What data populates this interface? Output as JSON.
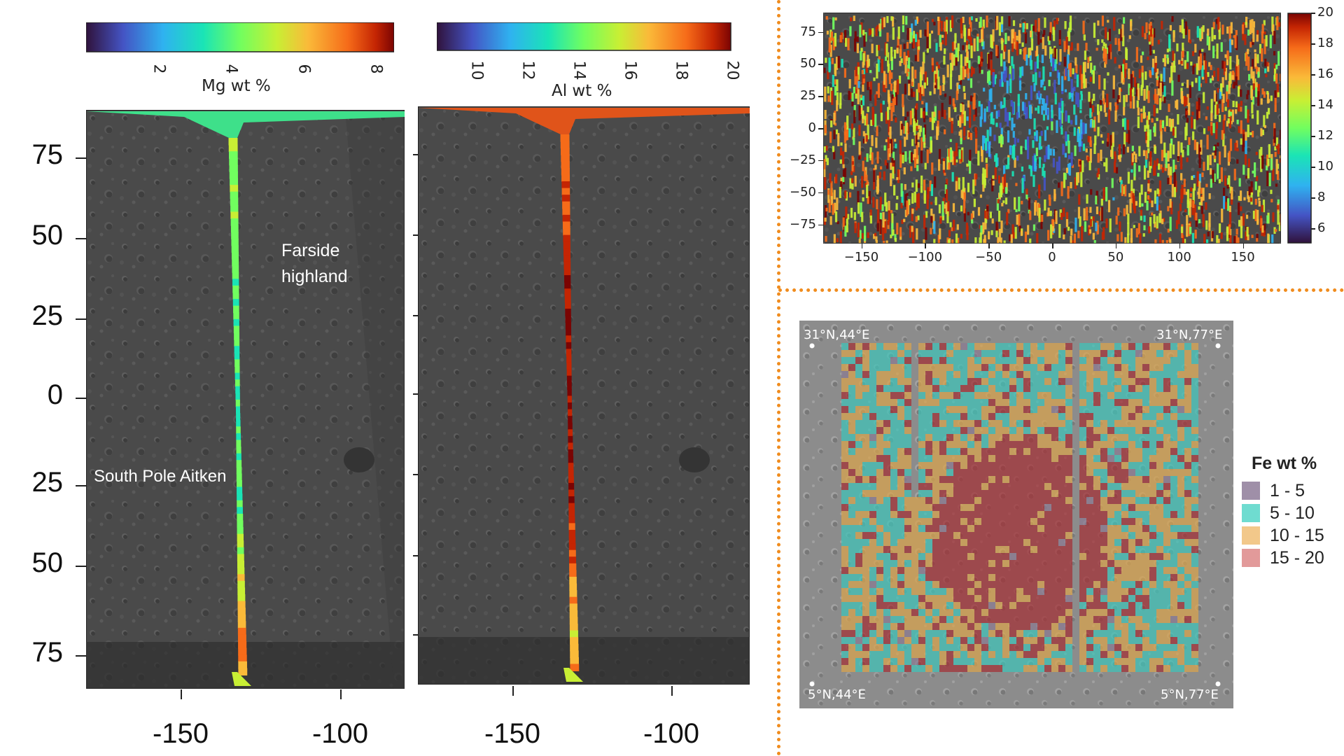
{
  "chart_data": [
    {
      "type": "heatmap",
      "panel": "Mg map strip",
      "colorbar_label": "Mg wt %",
      "colorbar_ticks": [
        "2",
        "4",
        "6",
        "8"
      ],
      "colorbar_range": [
        0,
        8.5
      ],
      "colormap": "turbo",
      "yticks": [
        "75",
        "50",
        "25",
        "0",
        "25",
        "50",
        "75"
      ],
      "xticks": [
        "-150",
        "-100"
      ],
      "annotations": [
        "Farside highland",
        "South Pole Aitken"
      ],
      "strip_profile": [
        {
          "lat": 85,
          "value": 4.3
        },
        {
          "lat": 60,
          "value": 4.0
        },
        {
          "lat": 30,
          "value": 3.5
        },
        {
          "lat": 0,
          "value": 3.3
        },
        {
          "lat": -30,
          "value": 3.6
        },
        {
          "lat": -55,
          "value": 5.0
        },
        {
          "lat": -70,
          "value": 6.2
        },
        {
          "lat": -85,
          "value": 5.6
        }
      ]
    },
    {
      "type": "heatmap",
      "panel": "Al map strip",
      "colorbar_label": "Al wt %",
      "colorbar_ticks": [
        "10",
        "12",
        "14",
        "16",
        "18",
        "20"
      ],
      "colorbar_range": [
        8.5,
        20
      ],
      "colormap": "turbo",
      "xticks": [
        "-150",
        "-100"
      ],
      "strip_profile": [
        {
          "lat": 85,
          "value": 17.5
        },
        {
          "lat": 60,
          "value": 18.0
        },
        {
          "lat": 30,
          "value": 19.5
        },
        {
          "lat": 0,
          "value": 19.8
        },
        {
          "lat": -30,
          "value": 19.6
        },
        {
          "lat": -55,
          "value": 17.0
        },
        {
          "lat": -70,
          "value": 16.0
        },
        {
          "lat": -85,
          "value": 16.5
        }
      ]
    },
    {
      "type": "heatmap",
      "panel": "Global map",
      "colorbar_ticks": [
        "20",
        "18",
        "16",
        "14",
        "12",
        "10",
        "8",
        "6"
      ],
      "colorbar_range": [
        5,
        20
      ],
      "colormap": "turbo",
      "yticks": [
        "75",
        "50",
        "25",
        "0",
        "−25",
        "−50",
        "−75"
      ],
      "xticks": [
        "−150",
        "−100",
        "−50",
        "0",
        "50",
        "100",
        "150"
      ],
      "xlim": [
        -180,
        180
      ],
      "ylim": [
        -90,
        90
      ]
    },
    {
      "type": "heatmap",
      "panel": "Regional Fe map",
      "legend_title": "Fe wt %",
      "legend": [
        {
          "label": "1 - 5",
          "color": "#9f8fa8"
        },
        {
          "label": "5 - 10",
          "color": "#6fdcd0"
        },
        {
          "label": "10 - 15",
          "color": "#f2c88a"
        },
        {
          "label": "15 - 20",
          "color": "#e29a9a"
        }
      ],
      "corner_labels": {
        "top_left": "31°N,44°E",
        "top_right": "31°N,77°E",
        "bottom_left": "5°N,44°E",
        "bottom_right": "5°N,77°E"
      }
    }
  ],
  "colors": {
    "divider": "#f08c1e",
    "fe_mare": "#a42f34",
    "fe_teal": "#3ec3b8",
    "fe_orange": "#d9a44c",
    "moon_dark": "#4b4b4b"
  }
}
